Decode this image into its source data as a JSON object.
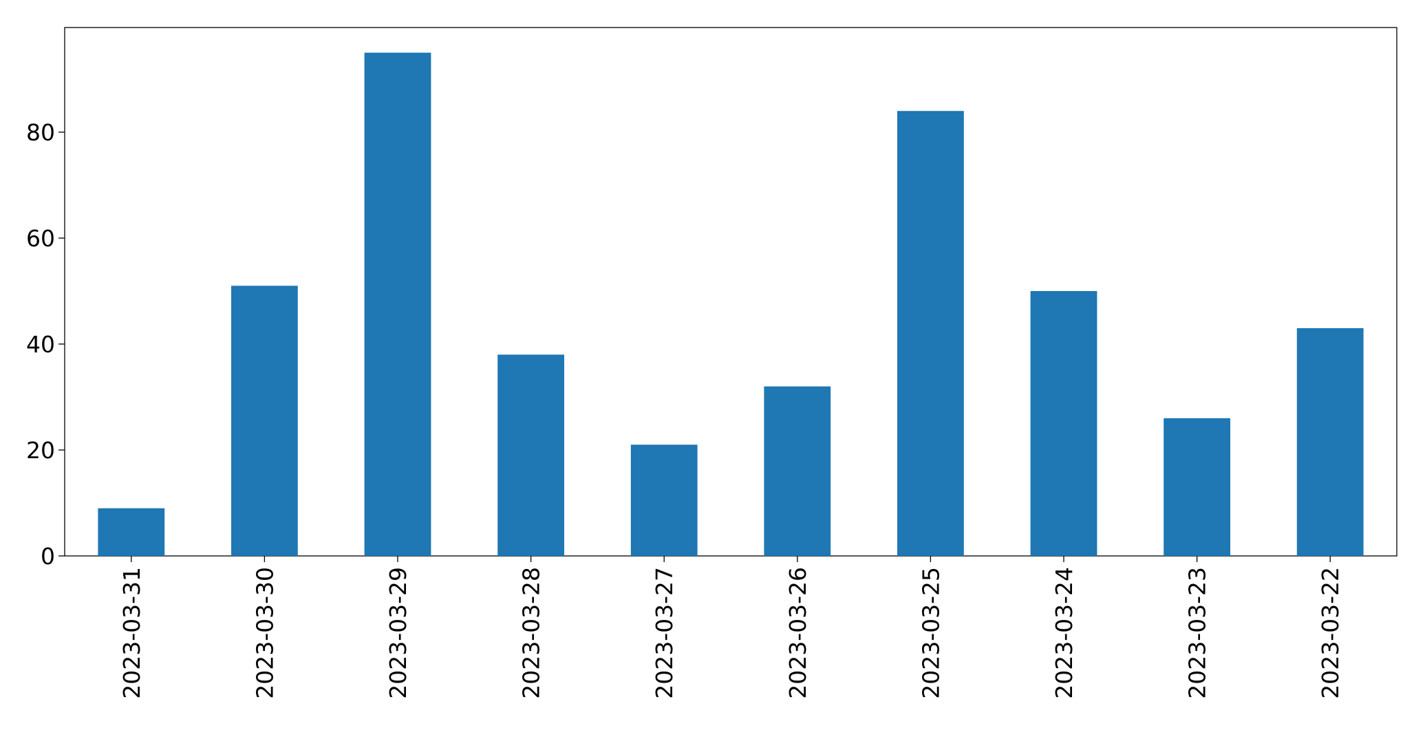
{
  "chart_data": {
    "type": "bar",
    "categories": [
      "2023-03-31",
      "2023-03-30",
      "2023-03-29",
      "2023-03-28",
      "2023-03-27",
      "2023-03-26",
      "2023-03-25",
      "2023-03-24",
      "2023-03-23",
      "2023-03-22"
    ],
    "values": [
      9,
      51,
      95,
      38,
      21,
      32,
      84,
      50,
      26,
      43
    ],
    "color": "#1f77b4",
    "ylim": [
      0,
      99.75
    ],
    "yticks": [
      0,
      20,
      40,
      60,
      80
    ],
    "grid": false
  }
}
